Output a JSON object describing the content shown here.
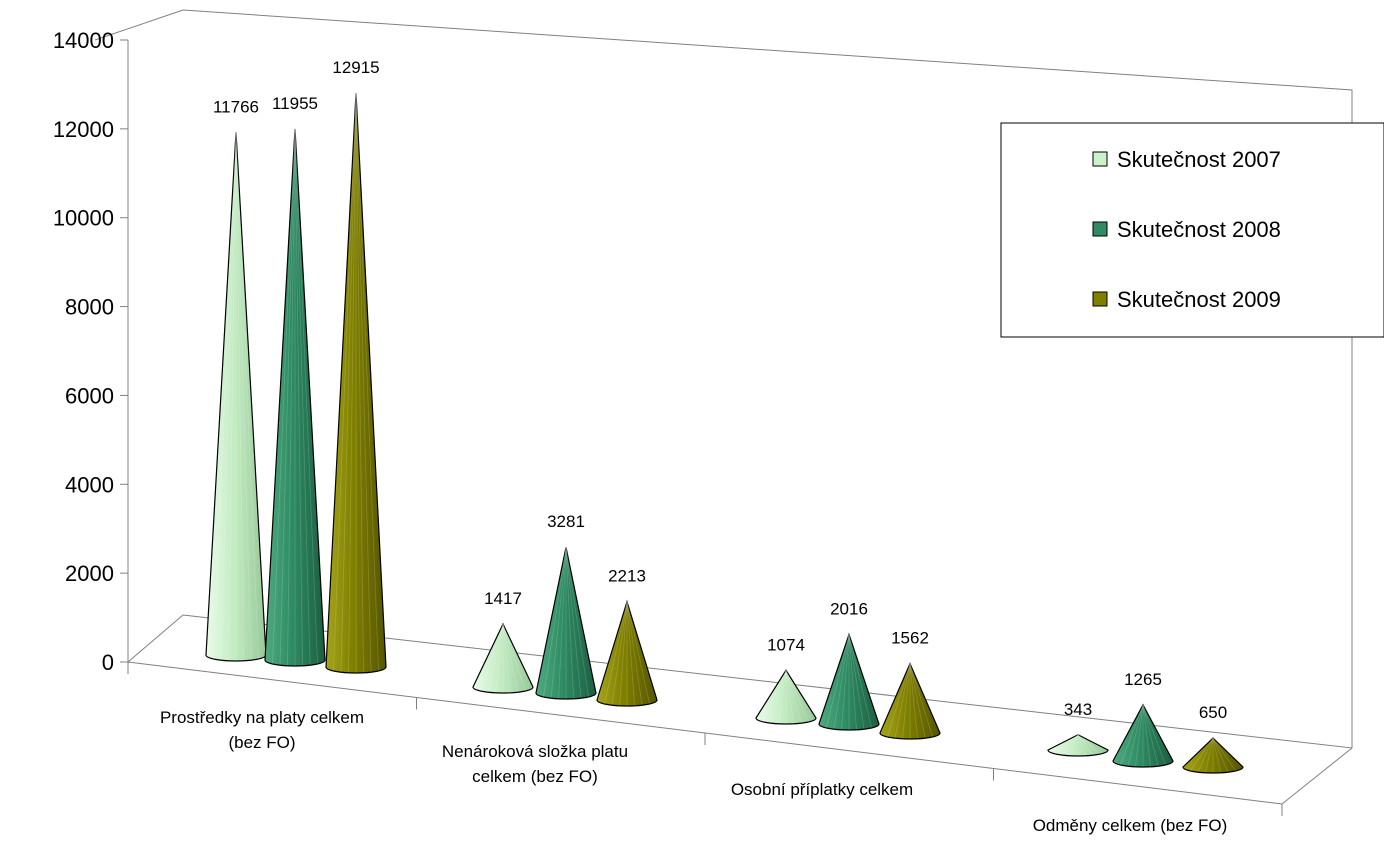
{
  "chart_data": {
    "type": "bar",
    "shape": "cone-3d",
    "categories": [
      [
        "Prostředky na platy celkem",
        "(bez FO)"
      ],
      [
        "Nenároková složka platu",
        "celkem (bez FO)"
      ],
      [
        "Osobní příplatky celkem"
      ],
      [
        "Odměny celkem (bez FO)"
      ]
    ],
    "series": [
      {
        "name": "Skutečnost 2007",
        "color": "#ccf2cc",
        "values": [
          11766,
          1417,
          1074,
          343
        ]
      },
      {
        "name": "Skutečnost 2008",
        "color": "#2e8b63",
        "values": [
          11955,
          3281,
          2016,
          1265
        ]
      },
      {
        "name": "Skutečnost 2009",
        "color": "#7f7f00",
        "values": [
          12915,
          2213,
          1562,
          650
        ]
      }
    ],
    "yticks": [
      "0",
      "2000",
      "4000",
      "6000",
      "8000",
      "10000",
      "12000",
      "14000"
    ],
    "ylim": [
      0,
      14000
    ],
    "legend_position": "right",
    "grid": false
  }
}
